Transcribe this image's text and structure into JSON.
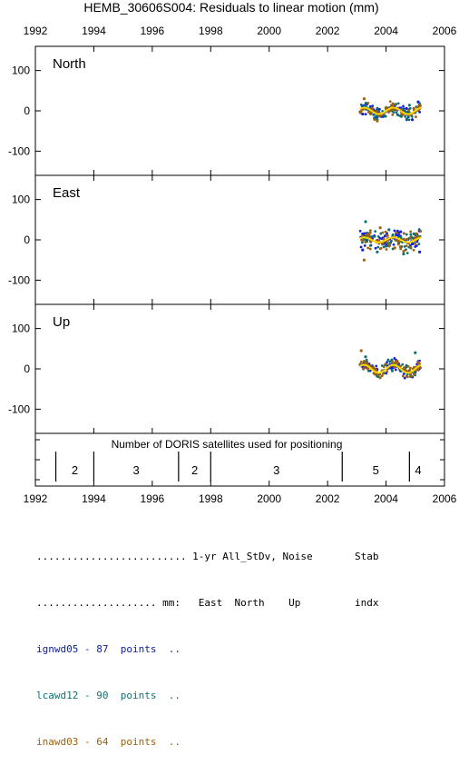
{
  "title": "HEMB_30606S004: Residuals to linear motion (mm)",
  "chart_data": [
    {
      "type": "scatter",
      "panel": "North",
      "xlim": [
        1992,
        2006
      ],
      "ylim": [
        -160,
        160
      ],
      "x_ticks": [
        1992,
        1994,
        1996,
        1998,
        2000,
        2002,
        2004,
        2006
      ],
      "y_ticks": [
        100,
        0,
        -100
      ],
      "data_x_range": [
        2003.1,
        2005.2
      ],
      "series": [
        {
          "color": "#1020e0",
          "values": [
            [
              2003.2,
              -8
            ],
            [
              2003.5,
              5
            ],
            [
              2003.9,
              -14
            ],
            [
              2004.3,
              4
            ],
            [
              2004.7,
              6
            ],
            [
              2004.9,
              -22
            ],
            [
              2005.1,
              22
            ]
          ]
        },
        {
          "color": "#107070",
          "values": [
            [
              2003.3,
              12
            ],
            [
              2003.6,
              -18
            ],
            [
              2004.0,
              8
            ],
            [
              2004.4,
              -10
            ],
            [
              2004.8,
              14
            ]
          ]
        },
        {
          "color": "#a06010",
          "values": [
            [
              2003.25,
              30
            ],
            [
              2003.7,
              -25
            ],
            [
              2004.2,
              12
            ]
          ]
        }
      ],
      "fit_curve": {
        "color": "#ffd700",
        "amplitude": 8,
        "period_years": 1
      }
    },
    {
      "type": "scatter",
      "panel": "East",
      "xlim": [
        1992,
        2006
      ],
      "ylim": [
        -160,
        160
      ],
      "x_ticks": [
        1992,
        1994,
        1996,
        1998,
        2000,
        2002,
        2004,
        2006
      ],
      "y_ticks": [
        100,
        0,
        -100
      ],
      "data_x_range": [
        2003.1,
        2005.2
      ],
      "series": [
        {
          "color": "#1020e0",
          "values": [
            [
              2003.2,
              -25
            ],
            [
              2003.6,
              10
            ],
            [
              2004.0,
              -15
            ],
            [
              2004.5,
              20
            ],
            [
              2004.9,
              -10
            ],
            [
              2005.15,
              -30
            ]
          ]
        },
        {
          "color": "#107070",
          "values": [
            [
              2003.3,
              45
            ],
            [
              2003.7,
              -30
            ],
            [
              2004.1,
              25
            ],
            [
              2004.6,
              -35
            ],
            [
              2004.95,
              15
            ]
          ]
        },
        {
          "color": "#a06010",
          "values": [
            [
              2003.25,
              -50
            ],
            [
              2003.8,
              30
            ],
            [
              2004.3,
              -20
            ]
          ]
        }
      ],
      "fit_curve": {
        "color": "#ffd700",
        "amplitude": 6,
        "period_years": 1
      }
    },
    {
      "type": "scatter",
      "panel": "Up",
      "xlim": [
        1992,
        2006
      ],
      "ylim": [
        -160,
        160
      ],
      "x_ticks": [
        1992,
        1994,
        1996,
        1998,
        2000,
        2002,
        2004,
        2006
      ],
      "y_ticks": [
        100,
        0,
        -100
      ],
      "data_x_range": [
        2003.1,
        2005.2
      ],
      "series": [
        {
          "color": "#1020e0",
          "values": [
            [
              2003.2,
              5
            ],
            [
              2003.6,
              -10
            ],
            [
              2004.0,
              12
            ],
            [
              2004.5,
              -5
            ],
            [
              2004.9,
              -20
            ],
            [
              2005.1,
              18
            ]
          ]
        },
        {
          "color": "#107070",
          "values": [
            [
              2003.3,
              30
            ],
            [
              2003.7,
              -18
            ],
            [
              2004.2,
              22
            ],
            [
              2004.7,
              8
            ],
            [
              2005.0,
              40
            ]
          ]
        },
        {
          "color": "#a06010",
          "values": [
            [
              2003.15,
              45
            ],
            [
              2003.8,
              -22
            ],
            [
              2004.4,
              15
            ]
          ]
        }
      ],
      "fit_curve": {
        "color": "#ffd700",
        "amplitude": 10,
        "period_years": 1
      }
    },
    {
      "type": "table",
      "title": "Number of DORIS satellites used for positioning",
      "xlim": [
        1992,
        2006
      ],
      "boundaries": [
        1992.7,
        1994.0,
        1996.9,
        1998.0,
        2002.5,
        2004.8
      ],
      "segments": [
        {
          "from": 1992.7,
          "to": 1994.0,
          "count": "2"
        },
        {
          "from": 1994.0,
          "to": 1996.9,
          "count": "3"
        },
        {
          "from": 1996.9,
          "to": 1998.0,
          "count": "2"
        },
        {
          "from": 1998.0,
          "to": 2002.5,
          "count": "3"
        },
        {
          "from": 2002.5,
          "to": 2004.8,
          "count": "5"
        },
        {
          "from": 2004.8,
          "to": 2005.4,
          "count": "4"
        }
      ]
    }
  ],
  "stats": {
    "header1": "......................... 1-yr All_StDv, Noise       Stab",
    "header2": ".................... mm:   East  North    Up         indx",
    "rows": [
      {
        "text": "ignwd05 - 87  points  ..",
        "color": "#1020a0"
      },
      {
        "text": "lcawd12 - 90  points  ..",
        "color": "#107070"
      },
      {
        "text": "inawd03 - 64  points  ..",
        "color": "#a06010"
      }
    ]
  }
}
